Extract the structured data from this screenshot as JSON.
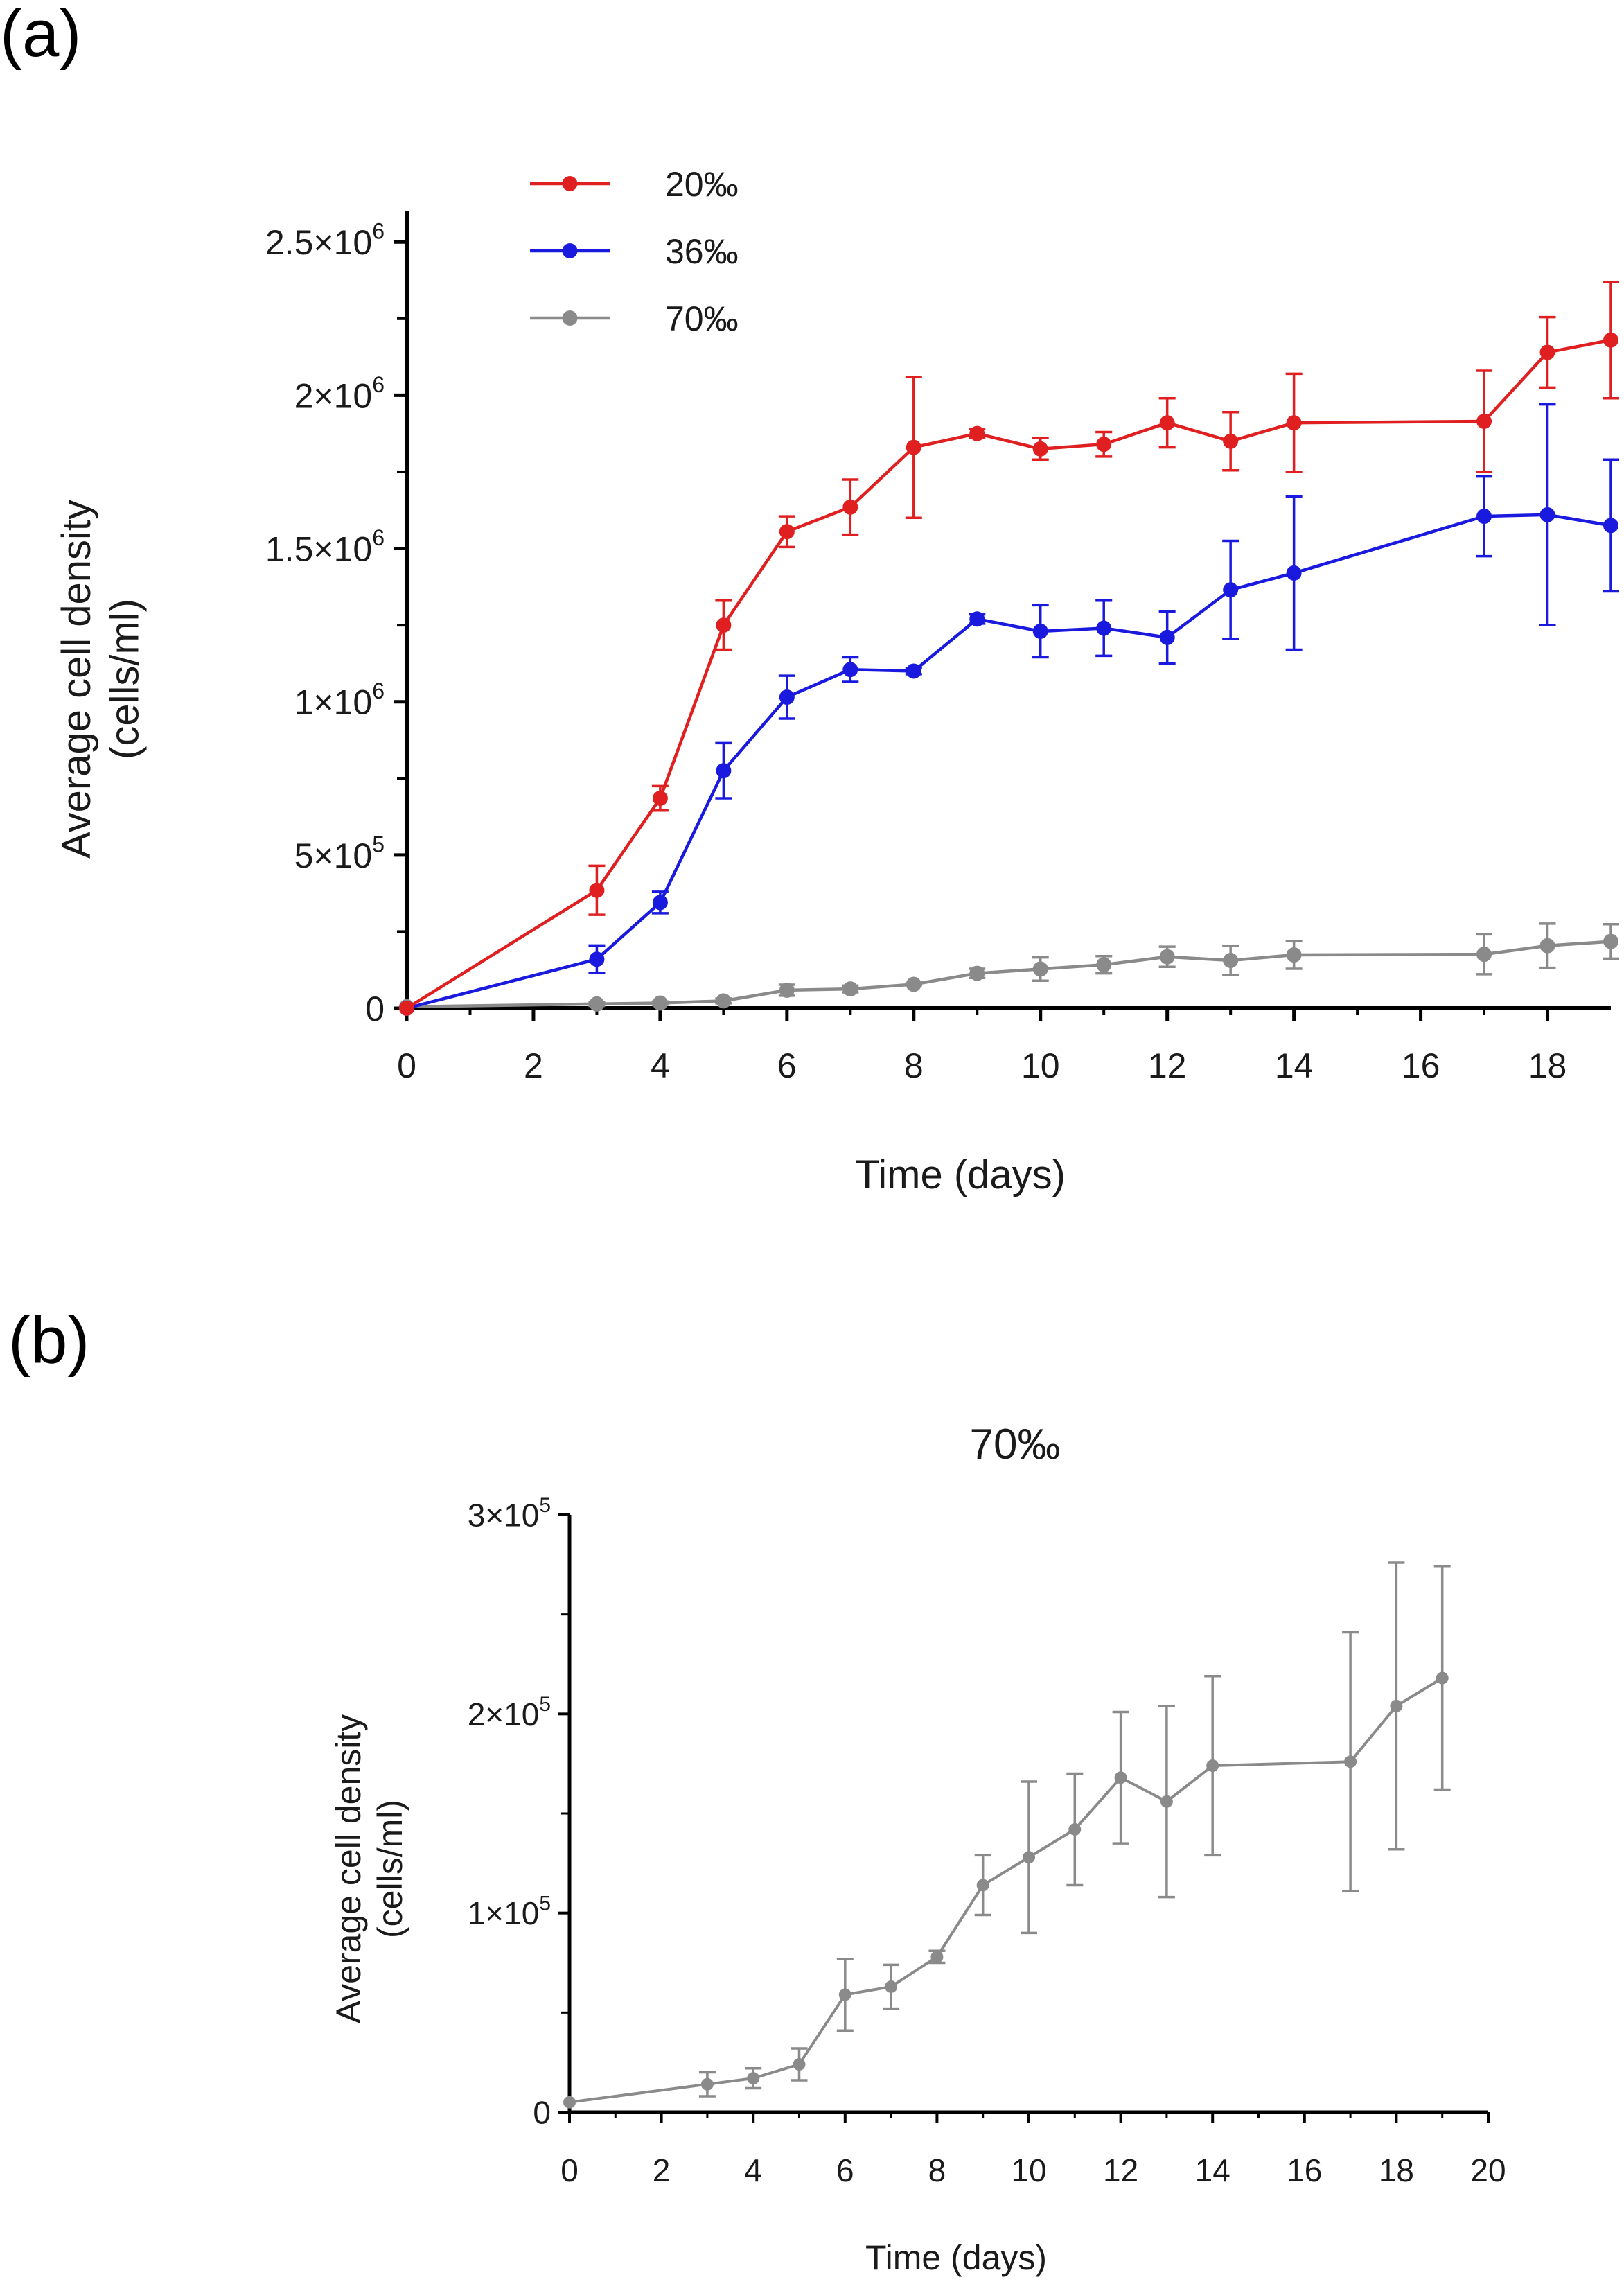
{
  "panel_labels": {
    "a": "(a)",
    "b": "(b)"
  },
  "chart_data": [
    {
      "type": "line",
      "panel": "(a)",
      "title": "",
      "xlabel": "Time (days)",
      "ylabel_line1": "Average cell density",
      "ylabel_line2": "(cells/ml)",
      "xlim": [
        0,
        19
      ],
      "ylim": [
        0,
        2600000
      ],
      "xticks": [
        0,
        2,
        4,
        6,
        8,
        10,
        12,
        14,
        16,
        18
      ],
      "xtick_labels": [
        "0",
        "2",
        "4",
        "6",
        "8",
        "10",
        "12",
        "14",
        "16",
        "18"
      ],
      "yticks": [
        0,
        500000,
        1000000,
        1500000,
        2000000,
        2500000
      ],
      "ytick_labels": [
        {
          "base": "0",
          "exp": ""
        },
        {
          "base": "5×10",
          "exp": "5"
        },
        {
          "base": "1×10",
          "exp": "6"
        },
        {
          "base": "1.5×10",
          "exp": "6"
        },
        {
          "base": "2×10",
          "exp": "6"
        },
        {
          "base": "2.5×10",
          "exp": "6"
        }
      ],
      "legend_position": "top-left",
      "series": [
        {
          "name": "20‰",
          "color": "#e02020",
          "x": [
            0,
            3,
            4,
            5,
            6,
            7,
            8,
            9,
            10,
            11,
            12,
            13,
            14,
            17,
            18,
            19
          ],
          "y": [
            0,
            385000,
            685000,
            1250000,
            1555000,
            1635000,
            1830000,
            1875000,
            1825000,
            1840000,
            1910000,
            1850000,
            1910000,
            1915000,
            2140000,
            2180000
          ],
          "err": [
            0,
            80000,
            40000,
            80000,
            50000,
            90000,
            230000,
            15000,
            35000,
            40000,
            80000,
            95000,
            160000,
            165000,
            115000,
            190000
          ]
        },
        {
          "name": "36‰",
          "color": "#1a1adf",
          "x": [
            0,
            3,
            4,
            5,
            6,
            7,
            8,
            9,
            10,
            11,
            12,
            13,
            14,
            17,
            18,
            19
          ],
          "y": [
            0,
            160000,
            345000,
            775000,
            1015000,
            1105000,
            1100000,
            1270000,
            1230000,
            1240000,
            1210000,
            1365000,
            1420000,
            1605000,
            1610000,
            1575000
          ],
          "err": [
            0,
            45000,
            35000,
            90000,
            70000,
            40000,
            10000,
            15000,
            85000,
            90000,
            85000,
            160000,
            250000,
            130000,
            360000,
            215000
          ]
        },
        {
          "name": "70‰",
          "color": "#8a8a8a",
          "x": [
            0,
            3,
            4,
            5,
            6,
            7,
            8,
            9,
            10,
            11,
            12,
            13,
            14,
            17,
            18,
            19
          ],
          "y": [
            5000,
            14000,
            17000,
            24000,
            59000,
            63000,
            78000,
            114000,
            128000,
            142000,
            168000,
            156000,
            174000,
            176000,
            204000,
            218000
          ],
          "err": [
            0,
            6000,
            5000,
            8000,
            18000,
            11000,
            3000,
            15000,
            38000,
            28000,
            33000,
            48000,
            45000,
            65000,
            72000,
            56000
          ]
        }
      ]
    },
    {
      "type": "line",
      "panel": "(b)",
      "title": "70‰",
      "xlabel": "Time (days)",
      "ylabel_line1": "Average cell density",
      "ylabel_line2": "(cells/ml)",
      "xlim": [
        0,
        20
      ],
      "ylim": [
        0,
        300000
      ],
      "xticks": [
        0,
        2,
        4,
        6,
        8,
        10,
        12,
        14,
        16,
        18,
        20
      ],
      "xtick_labels": [
        "0",
        "2",
        "4",
        "6",
        "8",
        "10",
        "12",
        "14",
        "16",
        "18",
        "20"
      ],
      "yticks": [
        0,
        100000,
        200000,
        300000
      ],
      "ytick_labels": [
        {
          "base": "0",
          "exp": ""
        },
        {
          "base": "1×10",
          "exp": "5"
        },
        {
          "base": "2×10",
          "exp": "5"
        },
        {
          "base": "3×10",
          "exp": "5"
        }
      ],
      "series": [
        {
          "name": "70‰",
          "color": "#8a8a8a",
          "x": [
            0,
            3,
            4,
            5,
            6,
            7,
            8,
            9,
            10,
            11,
            12,
            13,
            14,
            17,
            18,
            19
          ],
          "y": [
            5000,
            14000,
            17000,
            24000,
            59000,
            63000,
            78000,
            114000,
            128000,
            142000,
            168000,
            156000,
            174000,
            176000,
            204000,
            218000
          ],
          "err": [
            0,
            6000,
            5000,
            8000,
            18000,
            11000,
            3000,
            15000,
            38000,
            28000,
            33000,
            48000,
            45000,
            65000,
            72000,
            56000
          ]
        }
      ]
    }
  ]
}
